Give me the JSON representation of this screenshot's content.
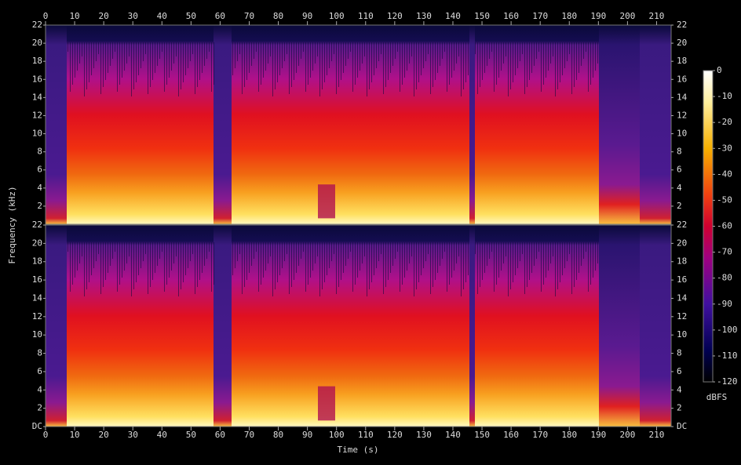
{
  "chart_data": {
    "type": "spectrogram",
    "x_label": "Time (s)",
    "y_label": "Frequency (kHz)",
    "xlim": [
      0,
      215
    ],
    "xticks": [
      0,
      10,
      20,
      30,
      40,
      50,
      60,
      70,
      80,
      90,
      100,
      110,
      120,
      130,
      140,
      150,
      160,
      170,
      180,
      190,
      200,
      210
    ],
    "panels": [
      {
        "ylim": [
          0,
          22
        ],
        "yticks": [
          2,
          4,
          6,
          8,
          10,
          12,
          14,
          16,
          18,
          20,
          22
        ]
      },
      {
        "ylim": [
          0,
          22
        ],
        "yticks": [
          {
            "value": 0,
            "label": "DC"
          },
          2,
          4,
          6,
          8,
          10,
          12,
          14,
          16,
          18,
          20,
          22
        ]
      }
    ],
    "colorbar": {
      "label": "dBFS",
      "lim": [
        -120,
        0
      ],
      "ticks": [
        0,
        -10,
        -20,
        -30,
        -40,
        -50,
        -60,
        -70,
        -80,
        -90,
        -100,
        -110,
        -120
      ]
    }
  }
}
